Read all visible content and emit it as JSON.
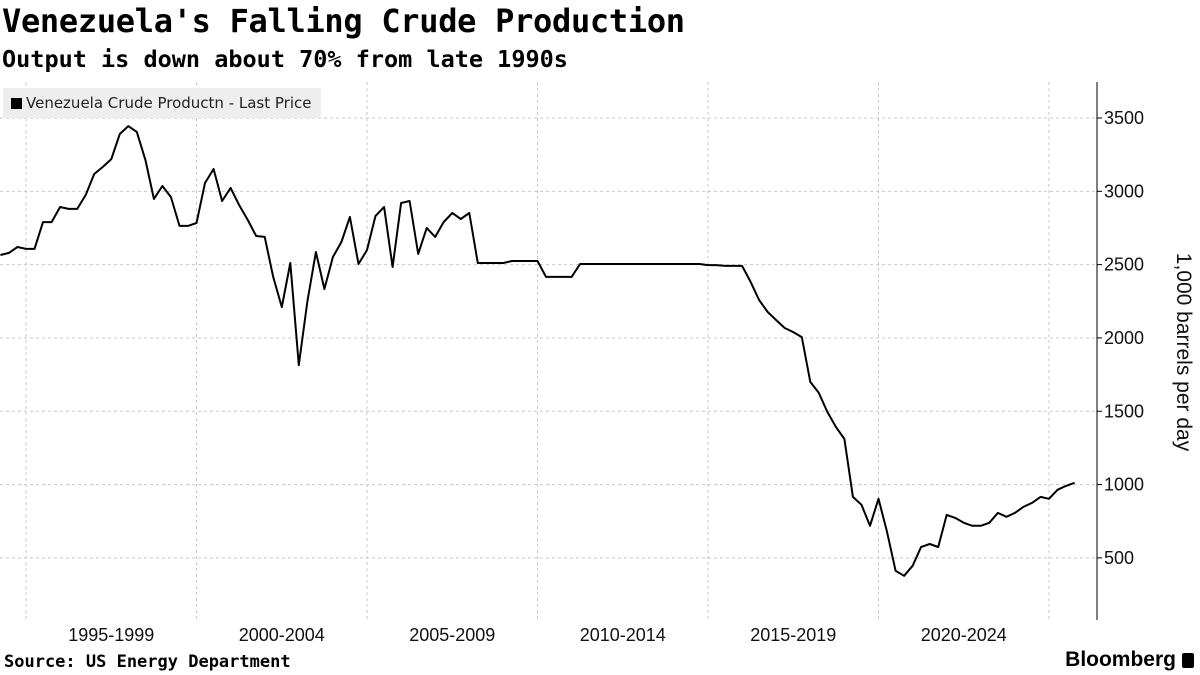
{
  "title": "Venezuela's Falling Crude Production",
  "subtitle": "Output is down about 70% from late 1990s",
  "source": "Source: US Energy Department",
  "logo_text": "Bloomberg",
  "chart_data": {
    "type": "line",
    "title": "Venezuela's Falling Crude Production",
    "subtitle": "Output is down about 70% from late 1990s",
    "ylabel": "1,000 barrels per day",
    "y_axis_side": "right",
    "ylim": [
      200,
      3750
    ],
    "yticks": [
      500,
      1000,
      1500,
      2000,
      2500,
      3000,
      3500
    ],
    "xtick_labels": [
      "1995-1999",
      "2000-2004",
      "2005-2009",
      "2010-2014",
      "2015-2019",
      "2020-2024"
    ],
    "grid": true,
    "legend_position": "top-left",
    "line_color": "#000000",
    "series": [
      {
        "name": "Venezuela Crude Productn - Last Price",
        "x": [
          "1994-Q2",
          "1994-Q3",
          "1994-Q4",
          "1995-Q1",
          "1995-Q2",
          "1995-Q3",
          "1995-Q4",
          "1996-Q1",
          "1996-Q2",
          "1996-Q3",
          "1996-Q4",
          "1997-Q1",
          "1997-Q2",
          "1997-Q3",
          "1997-Q4",
          "1998-Q1",
          "1998-Q2",
          "1998-Q3",
          "1998-Q4",
          "1999-Q1",
          "1999-Q2",
          "1999-Q3",
          "1999-Q4",
          "2000-Q1",
          "2000-Q2",
          "2000-Q3",
          "2000-Q4",
          "2001-Q1",
          "2001-Q2",
          "2001-Q3",
          "2001-Q4",
          "2002-Q1",
          "2002-Q2",
          "2002-Q3",
          "2002-Q4",
          "2003-Q1",
          "2003-Q2",
          "2003-Q3",
          "2003-Q4",
          "2004-Q1",
          "2004-Q2",
          "2004-Q3",
          "2004-Q4",
          "2005-Q1",
          "2005-Q2",
          "2005-Q3",
          "2005-Q4",
          "2006-Q1",
          "2006-Q2",
          "2006-Q3",
          "2006-Q4",
          "2007-Q1",
          "2007-Q2",
          "2007-Q3",
          "2007-Q4",
          "2008-Q1",
          "2008-Q2",
          "2008-Q3",
          "2008-Q4",
          "2009-Q1",
          "2009-Q2",
          "2009-Q3",
          "2009-Q4",
          "2010-Q1",
          "2010-Q2",
          "2010-Q3",
          "2010-Q4",
          "2011-Q1",
          "2011-Q2",
          "2011-Q3",
          "2011-Q4",
          "2012-Q1",
          "2012-Q2",
          "2012-Q3",
          "2012-Q4",
          "2013-Q1",
          "2013-Q2",
          "2013-Q3",
          "2013-Q4",
          "2014-Q1",
          "2014-Q2",
          "2014-Q3",
          "2014-Q4",
          "2015-Q1",
          "2015-Q2",
          "2015-Q3",
          "2015-Q4",
          "2016-Q1",
          "2016-Q2",
          "2016-Q3",
          "2016-Q4",
          "2017-Q1",
          "2017-Q2",
          "2017-Q3",
          "2017-Q4",
          "2018-Q1",
          "2018-Q2",
          "2018-Q3",
          "2018-Q4",
          "2019-Q1",
          "2019-Q2",
          "2019-Q3",
          "2019-Q4",
          "2020-Q1",
          "2020-Q2",
          "2020-Q3",
          "2020-Q4",
          "2021-Q1",
          "2021-Q2",
          "2021-Q3",
          "2021-Q4",
          "2022-Q1",
          "2022-Q2",
          "2022-Q3",
          "2022-Q4",
          "2023-Q1",
          "2023-Q2",
          "2023-Q3",
          "2023-Q4",
          "2024-Q1",
          "2024-Q2",
          "2024-Q3",
          "2024-Q4",
          "2025-Q1",
          "2025-Q2",
          "2025-Q3",
          "2025-Q4"
        ],
        "values": [
          2566,
          2580,
          2620,
          2607,
          2607,
          2790,
          2790,
          2893,
          2880,
          2880,
          2975,
          3118,
          3166,
          3220,
          3391,
          3445,
          3405,
          3214,
          2948,
          3036,
          2961,
          2764,
          2764,
          2784,
          3057,
          3152,
          2934,
          3023,
          2907,
          2805,
          2695,
          2689,
          2416,
          2211,
          2511,
          1815,
          2245,
          2586,
          2334,
          2552,
          2654,
          2825,
          2504,
          2600,
          2832,
          2893,
          2484,
          2920,
          2934,
          2573,
          2750,
          2689,
          2791,
          2852,
          2811,
          2852,
          2511,
          2511,
          2511,
          2511,
          2525,
          2525,
          2525,
          2525,
          2416,
          2416,
          2416,
          2416,
          2504,
          2504,
          2504,
          2504,
          2504,
          2504,
          2504,
          2504,
          2504,
          2504,
          2504,
          2504,
          2504,
          2504,
          2504,
          2497,
          2497,
          2491,
          2491,
          2491,
          2382,
          2259,
          2177,
          2122,
          2068,
          2040,
          2006,
          1700,
          1625,
          1495,
          1393,
          1311,
          916,
          862,
          719,
          903,
          678,
          412,
          378,
          446,
          574,
          595,
          574,
          793,
          773,
          739,
          719,
          719,
          739,
          807,
          780,
          807,
          848,
          875,
          916,
          903,
          964,
          991,
          1012
        ]
      }
    ]
  }
}
